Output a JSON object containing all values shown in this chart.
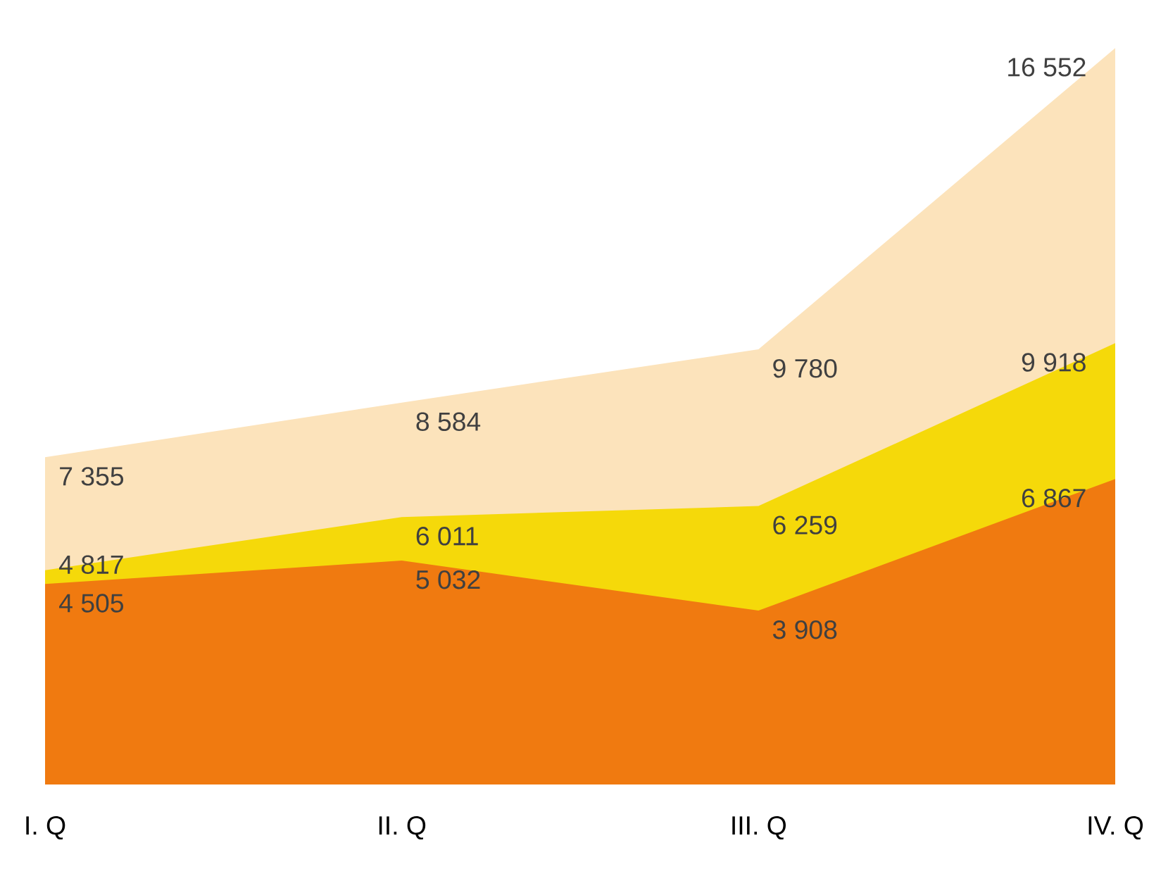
{
  "chart_data": {
    "type": "area",
    "categories": [
      "I. Q",
      "II. Q",
      "III. Q",
      "IV. Q"
    ],
    "data_labels": true,
    "series": [
      {
        "color": "#fce3bb",
        "values": [
          7355,
          8584,
          9780,
          16552
        ],
        "value_labels": [
          "7 355",
          "8 584",
          "9 780",
          "16 552"
        ]
      },
      {
        "color": "#f5d90a",
        "values": [
          4817,
          6011,
          6259,
          9918
        ],
        "value_labels": [
          "4 817",
          "6 011",
          "6 259",
          "9 918"
        ]
      },
      {
        "color": "#f07a10",
        "values": [
          4505,
          5032,
          3908,
          6867
        ],
        "value_labels": [
          "4 505",
          "5 032",
          "3 908",
          "6 867"
        ]
      }
    ]
  }
}
